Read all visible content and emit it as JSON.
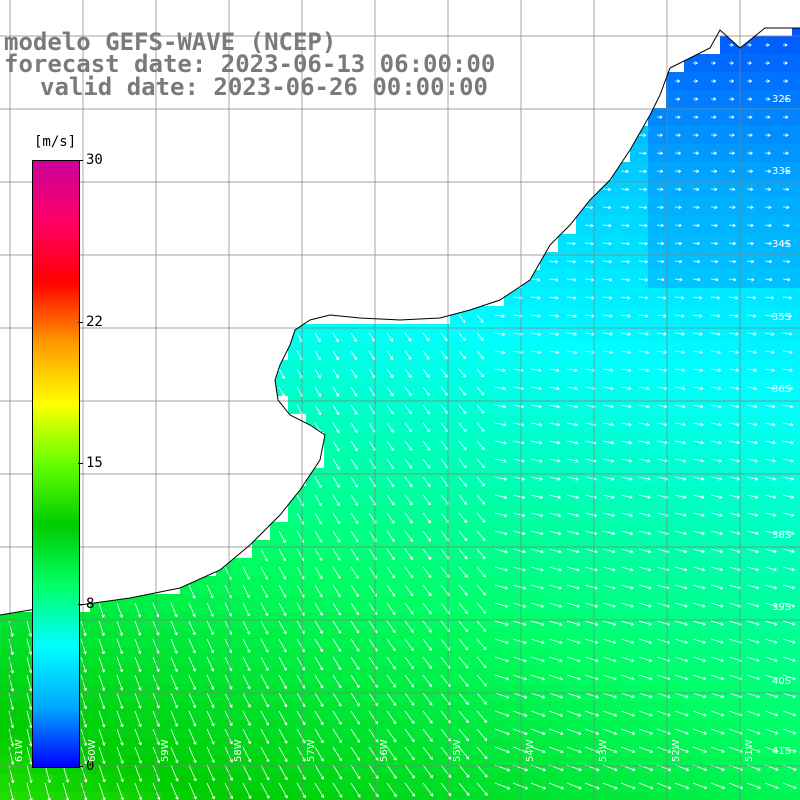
{
  "title": {
    "line1": "modelo GEFS-WAVE (NCEP)",
    "line2": "forecast date: 2023-06-13 06:00:00",
    "line3": "valid date: 2023-06-26 00:00:00"
  },
  "colorbar": {
    "unit": "[m/s]",
    "min": 0,
    "max": 30,
    "ticks": [
      "30",
      "22",
      "15",
      "8",
      "0"
    ],
    "tick_values": [
      30,
      22,
      15,
      8,
      0
    ],
    "stops": [
      "#0000ff",
      "#00aaff",
      "#00ffff",
      "#00ff66",
      "#00cc00",
      "#66ff00",
      "#ffff00",
      "#ff9900",
      "#ff0000",
      "#ff0066",
      "#cc0099"
    ]
  },
  "map": {
    "lat_labels": [
      "32S",
      "33S",
      "34S",
      "35S",
      "36S",
      "38S",
      "39S",
      "40S",
      "41S"
    ],
    "lon_labels": [
      "61W",
      "60W",
      "59W",
      "58W",
      "57W",
      "56W",
      "55W",
      "54W",
      "53W",
      "52W",
      "51W"
    ],
    "colors": {
      "land": "#ffffff",
      "coast": "#000000",
      "grid": "#808080",
      "arrow": "#ffffff"
    }
  }
}
